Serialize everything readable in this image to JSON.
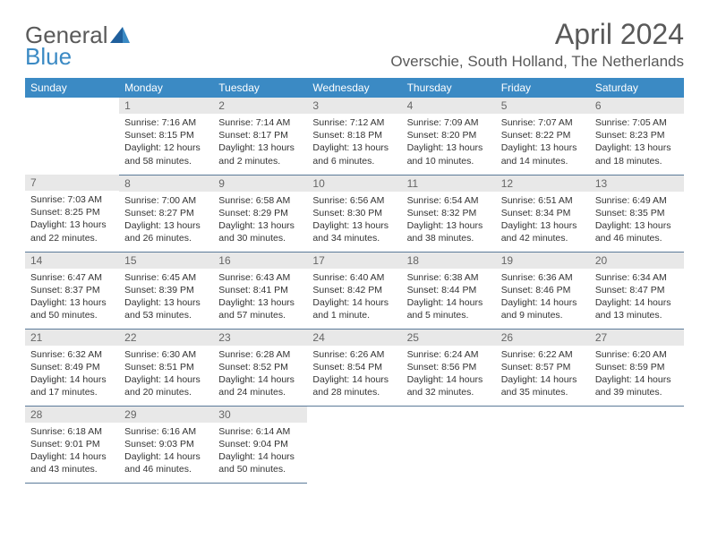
{
  "logo": {
    "text1": "General",
    "text2": "Blue"
  },
  "title": "April 2024",
  "location": "Overschie, South Holland, The Netherlands",
  "day_headers": [
    "Sunday",
    "Monday",
    "Tuesday",
    "Wednesday",
    "Thursday",
    "Friday",
    "Saturday"
  ],
  "colors": {
    "header_bg": "#3b8ac4",
    "header_text": "#ffffff",
    "daynum_bg": "#e8e8e8",
    "row_border": "#5b7a99",
    "text": "#333333",
    "title_text": "#595959"
  },
  "weeks": [
    [
      {
        "empty": true
      },
      {
        "num": "1",
        "sunrise": "Sunrise: 7:16 AM",
        "sunset": "Sunset: 8:15 PM",
        "daylight": "Daylight: 12 hours and 58 minutes."
      },
      {
        "num": "2",
        "sunrise": "Sunrise: 7:14 AM",
        "sunset": "Sunset: 8:17 PM",
        "daylight": "Daylight: 13 hours and 2 minutes."
      },
      {
        "num": "3",
        "sunrise": "Sunrise: 7:12 AM",
        "sunset": "Sunset: 8:18 PM",
        "daylight": "Daylight: 13 hours and 6 minutes."
      },
      {
        "num": "4",
        "sunrise": "Sunrise: 7:09 AM",
        "sunset": "Sunset: 8:20 PM",
        "daylight": "Daylight: 13 hours and 10 minutes."
      },
      {
        "num": "5",
        "sunrise": "Sunrise: 7:07 AM",
        "sunset": "Sunset: 8:22 PM",
        "daylight": "Daylight: 13 hours and 14 minutes."
      },
      {
        "num": "6",
        "sunrise": "Sunrise: 7:05 AM",
        "sunset": "Sunset: 8:23 PM",
        "daylight": "Daylight: 13 hours and 18 minutes."
      }
    ],
    [
      {
        "num": "7",
        "sunrise": "Sunrise: 7:03 AM",
        "sunset": "Sunset: 8:25 PM",
        "daylight": "Daylight: 13 hours and 22 minutes."
      },
      {
        "num": "8",
        "sunrise": "Sunrise: 7:00 AM",
        "sunset": "Sunset: 8:27 PM",
        "daylight": "Daylight: 13 hours and 26 minutes."
      },
      {
        "num": "9",
        "sunrise": "Sunrise: 6:58 AM",
        "sunset": "Sunset: 8:29 PM",
        "daylight": "Daylight: 13 hours and 30 minutes."
      },
      {
        "num": "10",
        "sunrise": "Sunrise: 6:56 AM",
        "sunset": "Sunset: 8:30 PM",
        "daylight": "Daylight: 13 hours and 34 minutes."
      },
      {
        "num": "11",
        "sunrise": "Sunrise: 6:54 AM",
        "sunset": "Sunset: 8:32 PM",
        "daylight": "Daylight: 13 hours and 38 minutes."
      },
      {
        "num": "12",
        "sunrise": "Sunrise: 6:51 AM",
        "sunset": "Sunset: 8:34 PM",
        "daylight": "Daylight: 13 hours and 42 minutes."
      },
      {
        "num": "13",
        "sunrise": "Sunrise: 6:49 AM",
        "sunset": "Sunset: 8:35 PM",
        "daylight": "Daylight: 13 hours and 46 minutes."
      }
    ],
    [
      {
        "num": "14",
        "sunrise": "Sunrise: 6:47 AM",
        "sunset": "Sunset: 8:37 PM",
        "daylight": "Daylight: 13 hours and 50 minutes."
      },
      {
        "num": "15",
        "sunrise": "Sunrise: 6:45 AM",
        "sunset": "Sunset: 8:39 PM",
        "daylight": "Daylight: 13 hours and 53 minutes."
      },
      {
        "num": "16",
        "sunrise": "Sunrise: 6:43 AM",
        "sunset": "Sunset: 8:41 PM",
        "daylight": "Daylight: 13 hours and 57 minutes."
      },
      {
        "num": "17",
        "sunrise": "Sunrise: 6:40 AM",
        "sunset": "Sunset: 8:42 PM",
        "daylight": "Daylight: 14 hours and 1 minute."
      },
      {
        "num": "18",
        "sunrise": "Sunrise: 6:38 AM",
        "sunset": "Sunset: 8:44 PM",
        "daylight": "Daylight: 14 hours and 5 minutes."
      },
      {
        "num": "19",
        "sunrise": "Sunrise: 6:36 AM",
        "sunset": "Sunset: 8:46 PM",
        "daylight": "Daylight: 14 hours and 9 minutes."
      },
      {
        "num": "20",
        "sunrise": "Sunrise: 6:34 AM",
        "sunset": "Sunset: 8:47 PM",
        "daylight": "Daylight: 14 hours and 13 minutes."
      }
    ],
    [
      {
        "num": "21",
        "sunrise": "Sunrise: 6:32 AM",
        "sunset": "Sunset: 8:49 PM",
        "daylight": "Daylight: 14 hours and 17 minutes."
      },
      {
        "num": "22",
        "sunrise": "Sunrise: 6:30 AM",
        "sunset": "Sunset: 8:51 PM",
        "daylight": "Daylight: 14 hours and 20 minutes."
      },
      {
        "num": "23",
        "sunrise": "Sunrise: 6:28 AM",
        "sunset": "Sunset: 8:52 PM",
        "daylight": "Daylight: 14 hours and 24 minutes."
      },
      {
        "num": "24",
        "sunrise": "Sunrise: 6:26 AM",
        "sunset": "Sunset: 8:54 PM",
        "daylight": "Daylight: 14 hours and 28 minutes."
      },
      {
        "num": "25",
        "sunrise": "Sunrise: 6:24 AM",
        "sunset": "Sunset: 8:56 PM",
        "daylight": "Daylight: 14 hours and 32 minutes."
      },
      {
        "num": "26",
        "sunrise": "Sunrise: 6:22 AM",
        "sunset": "Sunset: 8:57 PM",
        "daylight": "Daylight: 14 hours and 35 minutes."
      },
      {
        "num": "27",
        "sunrise": "Sunrise: 6:20 AM",
        "sunset": "Sunset: 8:59 PM",
        "daylight": "Daylight: 14 hours and 39 minutes."
      }
    ],
    [
      {
        "num": "28",
        "sunrise": "Sunrise: 6:18 AM",
        "sunset": "Sunset: 9:01 PM",
        "daylight": "Daylight: 14 hours and 43 minutes."
      },
      {
        "num": "29",
        "sunrise": "Sunrise: 6:16 AM",
        "sunset": "Sunset: 9:03 PM",
        "daylight": "Daylight: 14 hours and 46 minutes."
      },
      {
        "num": "30",
        "sunrise": "Sunrise: 6:14 AM",
        "sunset": "Sunset: 9:04 PM",
        "daylight": "Daylight: 14 hours and 50 minutes."
      },
      {
        "empty": true
      },
      {
        "empty": true
      },
      {
        "empty": true
      },
      {
        "empty": true
      }
    ]
  ]
}
